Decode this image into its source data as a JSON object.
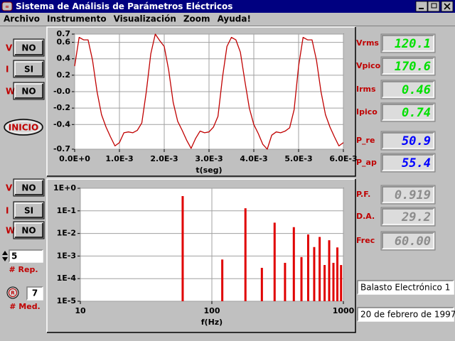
{
  "window": {
    "title": "Sistema de Análisis de Parámetros Eléctricos"
  },
  "menu": [
    "Archivo",
    "Instrumento",
    "Visualización",
    "Zoom",
    "Ayuda!"
  ],
  "controls": {
    "top": [
      {
        "label": "V",
        "button": "NO"
      },
      {
        "label": "I",
        "button": "SI"
      },
      {
        "label": "W",
        "button": "NO"
      }
    ],
    "start": "INICIO",
    "bottom": [
      {
        "label": "V",
        "button": "NO"
      },
      {
        "label": "I",
        "button": "SI"
      },
      {
        "label": "W",
        "button": "NO"
      }
    ],
    "repetitions": {
      "value": "5",
      "label": "# Rep."
    },
    "measurements": {
      "button": "R",
      "value": "7",
      "label": "# Med."
    }
  },
  "readouts": [
    {
      "label": "Vrms",
      "value": "120.1",
      "color": "#00e000"
    },
    {
      "label": "Vpico",
      "value": "170.6",
      "color": "#00e000"
    },
    {
      "label": "Irms",
      "value": "0.46",
      "color": "#00e000"
    },
    {
      "label": "Ipico",
      "value": "0.74",
      "color": "#00e000"
    },
    {
      "label": "P_re",
      "value": "50.9",
      "color": "#0000ff"
    },
    {
      "label": "P_ap",
      "value": "55.4",
      "color": "#0000ff"
    },
    {
      "label": "P.F.",
      "value": "0.919",
      "color": "#8c8c8c"
    },
    {
      "label": "D.A.",
      "value": "29.2",
      "color": "#8c8c8c"
    },
    {
      "label": "Frec",
      "value": "60.00",
      "color": "#8c8c8c"
    }
  ],
  "fields": [
    "Balasto Electrónico 1",
    "20 de febrero de 1997"
  ],
  "chart_data": [
    {
      "type": "line",
      "xlabel": "t(seg)",
      "color": "#c00000",
      "grid": true,
      "x": [
        0,
        0.0001,
        0.0002,
        0.0003,
        0.0004,
        0.0005,
        0.0006,
        0.0007,
        0.0008,
        0.0009,
        0.001,
        0.0011,
        0.0012,
        0.0013,
        0.0014,
        0.0015,
        0.0016,
        0.0017,
        0.0018,
        0.0019,
        0.002,
        0.0021,
        0.0022,
        0.0023,
        0.0024,
        0.0025,
        0.0026,
        0.0027,
        0.0028,
        0.0029,
        0.003,
        0.0031,
        0.0032,
        0.0033,
        0.0034,
        0.0035,
        0.0036,
        0.0037,
        0.0038,
        0.0039,
        0.004,
        0.0041,
        0.0042,
        0.0043,
        0.0044,
        0.0045,
        0.0046,
        0.0047,
        0.0048,
        0.0049,
        0.005,
        0.0051,
        0.0052,
        0.0053,
        0.0054,
        0.0055,
        0.0056,
        0.0057,
        0.0058,
        0.0059,
        0.006
      ],
      "values": [
        0.31,
        0.66,
        0.63,
        0.63,
        0.38,
        0.0,
        -0.28,
        -0.43,
        -0.55,
        -0.66,
        -0.62,
        -0.5,
        -0.49,
        -0.5,
        -0.47,
        -0.38,
        0.0,
        0.46,
        0.7,
        0.62,
        0.55,
        0.26,
        -0.13,
        -0.36,
        -0.47,
        -0.59,
        -0.69,
        -0.57,
        -0.48,
        -0.5,
        -0.49,
        -0.43,
        -0.3,
        0.17,
        0.55,
        0.66,
        0.63,
        0.48,
        0.13,
        -0.2,
        -0.4,
        -0.51,
        -0.64,
        -0.7,
        -0.53,
        -0.49,
        -0.5,
        -0.48,
        -0.44,
        -0.22,
        0.31,
        0.66,
        0.63,
        0.63,
        0.38,
        0.0,
        -0.28,
        -0.43,
        -0.55,
        -0.66,
        -0.62
      ],
      "xlim": [
        0,
        0.006
      ],
      "ylim": [
        -0.7,
        0.7
      ],
      "xticks": [
        {
          "value": 0,
          "label": "0.0E+0"
        },
        {
          "value": 0.001,
          "label": "1.0E-3"
        },
        {
          "value": 0.002,
          "label": "2.0E-3"
        },
        {
          "value": 0.003,
          "label": "3.0E-3"
        },
        {
          "value": 0.004,
          "label": "4.0E-3"
        },
        {
          "value": 0.005,
          "label": "5.0E-3"
        },
        {
          "value": 0.006,
          "label": "6.0E-3"
        }
      ],
      "yticks": [
        0.7,
        0.6,
        0.4,
        0.2,
        {
          "value": 0,
          "label": "-0.0"
        },
        -0.2,
        -0.4,
        -0.7
      ]
    },
    {
      "type": "bar",
      "xlabel": "f(Hz)",
      "color": "#e00000",
      "grid": true,
      "xscale": "log",
      "yscale": "log",
      "x": [
        60,
        120,
        180,
        240,
        300,
        360,
        420,
        480,
        540,
        600,
        660,
        720,
        780,
        840,
        900,
        960
      ],
      "values": [
        0.45,
        0.0007,
        0.13,
        0.0003,
        0.03,
        0.0005,
        0.019,
        0.0009,
        0.009,
        0.0025,
        0.007,
        0.0004,
        0.005,
        0.0005,
        0.0024,
        0.0004
      ],
      "xlim": [
        10,
        1000
      ],
      "ylim": [
        1e-05,
        1
      ],
      "xticks": [
        10,
        100,
        1000
      ],
      "yticks": [
        {
          "value": 1,
          "label": "1E+0"
        },
        {
          "value": 0.1,
          "label": "1E-1"
        },
        {
          "value": 0.01,
          "label": "1E-2"
        },
        {
          "value": 0.001,
          "label": "1E-3"
        },
        {
          "value": 0.0001,
          "label": "1E-4"
        },
        {
          "value": 1e-05,
          "label": "1E-5"
        }
      ]
    }
  ]
}
